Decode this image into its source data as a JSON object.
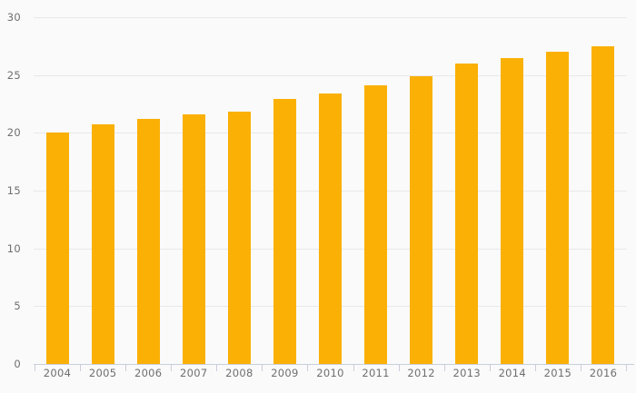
{
  "chart_data": {
    "type": "bar",
    "title": "",
    "xlabel": "",
    "ylabel": "",
    "categories": [
      "2004",
      "2005",
      "2006",
      "2007",
      "2008",
      "2009",
      "2010",
      "2011",
      "2012",
      "2013",
      "2014",
      "2015",
      "2016"
    ],
    "values": [
      20.0,
      20.7,
      21.2,
      21.6,
      21.8,
      22.9,
      23.4,
      24.1,
      24.9,
      26.0,
      26.5,
      27.0,
      27.5
    ],
    "ylim": [
      0,
      30
    ],
    "yticks": [
      0,
      5,
      10,
      15,
      20,
      25,
      30
    ],
    "grid": true,
    "legend": false,
    "colors": {
      "bar": "#FAB005",
      "background": "#FAFAFA",
      "gridline": "#E8E8E8",
      "axis_line": "#C9CEDA",
      "tick_label": "#6F6F6F"
    }
  }
}
